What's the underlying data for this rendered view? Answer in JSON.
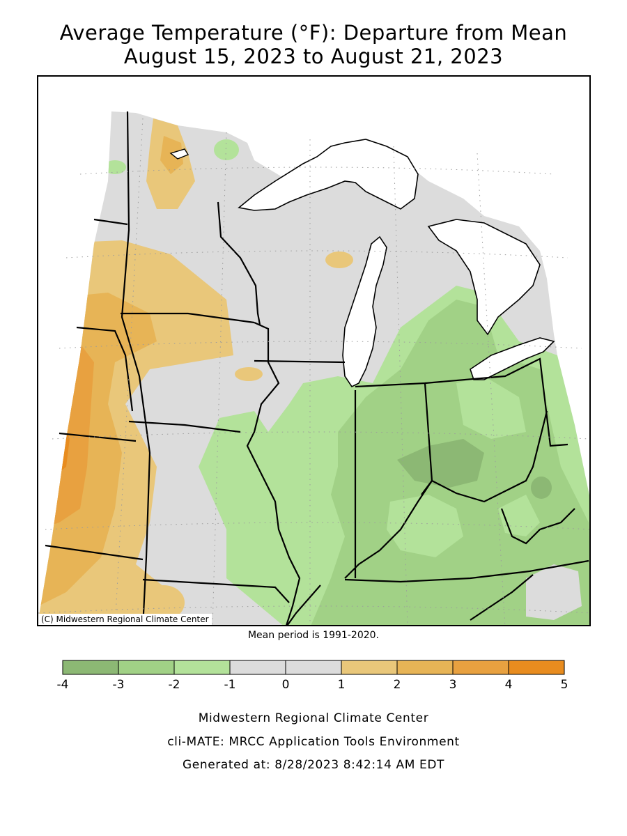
{
  "title": {
    "line1": "Average Temperature (°F): Departure from Mean",
    "line2": "August 15, 2023 to August 21, 2023"
  },
  "map": {
    "copyright": "(C) Midwestern Regional Climate Center",
    "mean_period": "Mean period is 1991-2020."
  },
  "legend": {
    "ticks": [
      "-4",
      "-3",
      "-2",
      "-1",
      "0",
      "1",
      "2",
      "3",
      "4",
      "5"
    ],
    "colors": [
      "#8cb874",
      "#a1d186",
      "#b3e29a",
      "#dcdcdc",
      "#dcdcdc",
      "#e9c77a",
      "#e7b456",
      "#e8a140",
      "#e88c1f"
    ]
  },
  "palette": {
    "land_neutral": "#dcdcdc",
    "green_light": "#b3e29a",
    "green_mid": "#a1d186",
    "green_dark": "#8cb874",
    "orange_1": "#e9c77a",
    "orange_2": "#e7b456",
    "orange_3": "#e8a140",
    "water": "#ffffff"
  },
  "footer": {
    "line1": "Midwestern Regional Climate Center",
    "line2": "cli-MATE: MRCC Application Tools Environment",
    "line3": "Generated at: 8/28/2023 8:42:14 AM EDT"
  }
}
